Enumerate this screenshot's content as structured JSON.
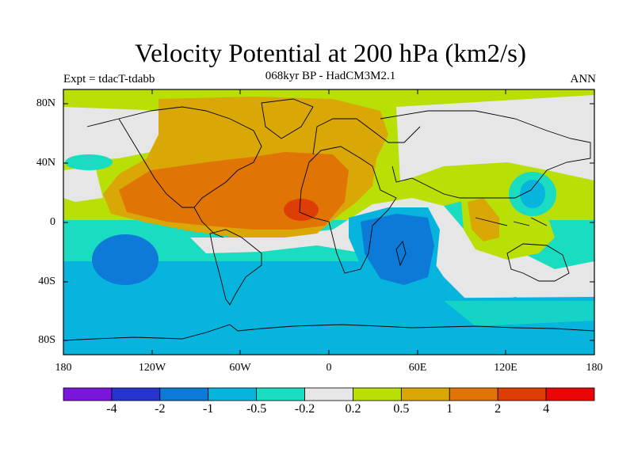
{
  "title": "Velocity Potential at 200 hPa (km2/s)",
  "subtitle": "068kyr BP - HadCM3M2.1",
  "experiment_label": "Expt = tdacT-tdabb",
  "season_label": "ANN",
  "lat_ticks": [
    "80N",
    "40N",
    "0",
    "40S",
    "80S"
  ],
  "lon_ticks": [
    "180",
    "120W",
    "60W",
    "0",
    "60E",
    "120E",
    "180"
  ],
  "colorbar": {
    "labels": [
      "-4",
      "-2",
      "-1",
      "-0.5",
      "-0.2",
      "0.2",
      "0.5",
      "1",
      "2",
      "4"
    ],
    "colors": [
      "#7a16d8",
      "#2634cc",
      "#0e7ad8",
      "#06b4de",
      "#19dcc0",
      "#e6e6e6",
      "#b8df06",
      "#daa806",
      "#e07506",
      "#dc3e06",
      "#e80606"
    ]
  }
}
